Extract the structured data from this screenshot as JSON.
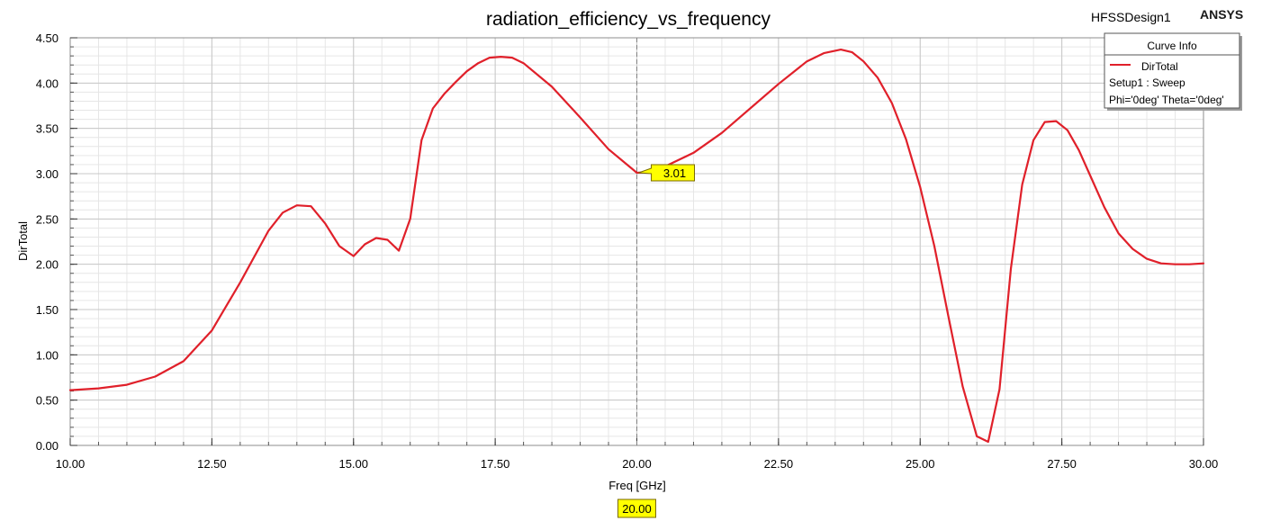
{
  "header": {
    "design_name": "HFSSDesign1",
    "brand": "ANSYS"
  },
  "legend": {
    "title": "Curve Info",
    "entry": "DirTotal",
    "line2": "Setup1 : Sweep",
    "line3": "Phi='0deg' Theta='0deg'"
  },
  "marker": {
    "x_value": 20.0,
    "y_value": 3.01,
    "x_label": "20.00",
    "y_label": "3.01"
  },
  "colors": {
    "curve": "#e0202a",
    "marker_fill": "#ffff00",
    "cursor_line": "#808080",
    "grid_major": "#c8c8c8",
    "grid_minor": "#e6e6e6"
  },
  "chart_data": {
    "type": "line",
    "title": "radiation_efficiency_vs_frequency",
    "xlabel": "Freq [GHz]",
    "ylabel": "DirTotal",
    "xlim": [
      10,
      30
    ],
    "ylim": [
      0,
      4.5
    ],
    "xticks": [
      10,
      12.5,
      15,
      17.5,
      20,
      22.5,
      25,
      27.5,
      30
    ],
    "xtick_labels": [
      "10.00",
      "12.50",
      "15.00",
      "17.50",
      "20.00",
      "22.50",
      "25.00",
      "27.50",
      "30.00"
    ],
    "yticks": [
      0,
      0.5,
      1,
      1.5,
      2,
      2.5,
      3,
      3.5,
      4,
      4.5
    ],
    "ytick_labels": [
      "0.00",
      "0.50",
      "1.00",
      "1.50",
      "2.00",
      "2.50",
      "3.00",
      "3.50",
      "4.00",
      "4.50"
    ],
    "grid": true,
    "legend_position": "top-right",
    "series": [
      {
        "name": "DirTotal",
        "x": [
          10,
          10.5,
          11,
          11.5,
          12,
          12.5,
          13,
          13.5,
          13.75,
          14,
          14.25,
          14.5,
          14.75,
          15,
          15.2,
          15.4,
          15.6,
          15.8,
          16,
          16.2,
          16.4,
          16.6,
          16.8,
          17,
          17.2,
          17.4,
          17.6,
          17.8,
          18,
          18.5,
          19,
          19.5,
          20,
          20.3,
          20.5,
          21,
          21.5,
          22,
          22.5,
          23,
          23.3,
          23.6,
          23.8,
          24,
          24.25,
          24.5,
          24.75,
          25,
          25.25,
          25.5,
          25.75,
          26,
          26.2,
          26.4,
          26.6,
          26.8,
          27,
          27.2,
          27.4,
          27.6,
          27.8,
          28,
          28.25,
          28.5,
          28.75,
          29,
          29.25,
          29.5,
          29.75,
          30
        ],
        "y": [
          0.61,
          0.63,
          0.67,
          0.76,
          0.93,
          1.27,
          1.8,
          2.37,
          2.57,
          2.65,
          2.64,
          2.45,
          2.2,
          2.09,
          2.22,
          2.29,
          2.27,
          2.15,
          2.5,
          3.37,
          3.72,
          3.88,
          4.01,
          4.13,
          4.22,
          4.28,
          4.29,
          4.28,
          4.22,
          3.96,
          3.62,
          3.27,
          3.01,
          3.02,
          3.08,
          3.23,
          3.45,
          3.72,
          3.99,
          4.24,
          4.33,
          4.37,
          4.34,
          4.24,
          4.06,
          3.78,
          3.38,
          2.85,
          2.2,
          1.42,
          0.65,
          0.1,
          0.04,
          0.62,
          1.95,
          2.88,
          3.37,
          3.57,
          3.58,
          3.48,
          3.26,
          2.98,
          2.63,
          2.34,
          2.17,
          2.06,
          2.01,
          2.0,
          2.0,
          2.01
        ]
      }
    ]
  }
}
